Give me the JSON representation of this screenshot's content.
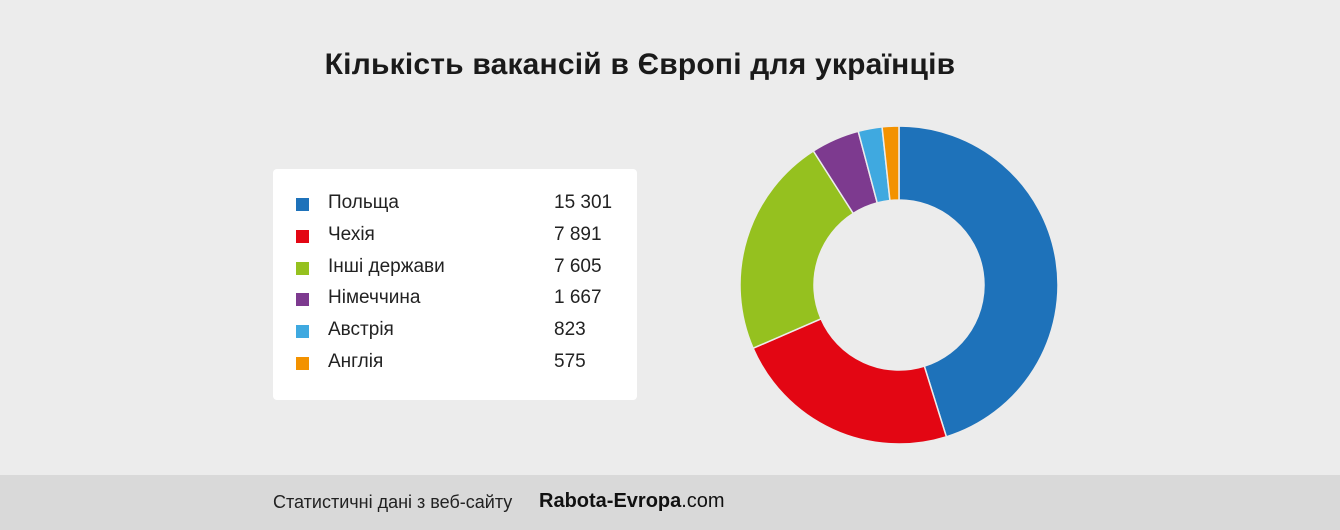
{
  "title": "Кількість вакансій в Європі для українців",
  "chart_data": {
    "type": "pie",
    "title": "Кількість вакансій в Європі для українців",
    "categories": [
      "Польща",
      "Чехія",
      "Інші держави",
      "Німеччина",
      "Австрія",
      "Англія"
    ],
    "values": [
      15301,
      7891,
      7605,
      1667,
      823,
      575
    ],
    "value_labels": [
      "15 301",
      "7 891",
      "7 605",
      "1 667",
      "823",
      "575"
    ],
    "colors": [
      "#1e72ba",
      "#e30613",
      "#95c11f",
      "#7d3a8f",
      "#3fa9e0",
      "#f39200"
    ],
    "donut": true,
    "legend": "left"
  },
  "footer": {
    "source_text": "Статистичні дані з веб-сайту",
    "brand": "Rabota-Evropa",
    "brand_tld": ".com"
  }
}
